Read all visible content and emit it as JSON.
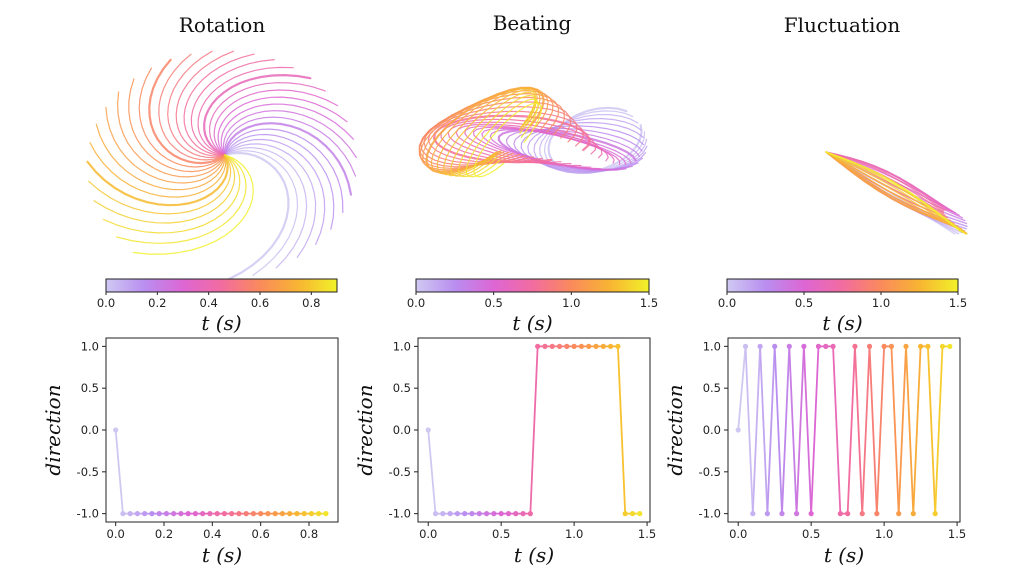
{
  "colormap": [
    "#cfc9f2",
    "#b98ef0",
    "#dd66d4",
    "#f26ca0",
    "#fa8a5c",
    "#f8b532",
    "#f1f12a"
  ],
  "panels": [
    {
      "title": "Rotation",
      "shape": "rotation",
      "colorbar": {
        "ticks": [
          "0.0",
          "0.2",
          "0.4",
          "0.6",
          "0.8"
        ],
        "max": 0.9,
        "label": "t (s)"
      },
      "chart_tmax": 0.9
    },
    {
      "title": "Beating",
      "shape": "beating",
      "colorbar": {
        "ticks": [
          "0.0",
          "0.5",
          "1.0",
          "1.5"
        ],
        "max": 1.5,
        "label": "t (s)"
      },
      "chart_tmax": 1.5
    },
    {
      "title": "Fluctuation",
      "shape": "fluctuation",
      "colorbar": {
        "ticks": [
          "0.0",
          "0.5",
          "1.0",
          "1.5"
        ],
        "max": 1.5,
        "label": "t (s)"
      },
      "chart_tmax": 1.5
    }
  ],
  "chart_data": [
    {
      "type": "line",
      "title": "Rotation",
      "xlabel": "t (s)",
      "ylabel": "direction",
      "xlim": [
        -0.04,
        0.92
      ],
      "ylim": [
        -1.1,
        1.1
      ],
      "xticks": [
        "0.0",
        "0.2",
        "0.4",
        "0.6",
        "0.8"
      ],
      "yticks": [
        "-1.0",
        "-0.5",
        "0.0",
        "0.5",
        "1.0"
      ],
      "x": [
        0.0,
        0.03,
        0.06,
        0.09,
        0.12,
        0.15,
        0.18,
        0.21,
        0.24,
        0.27,
        0.3,
        0.33,
        0.36,
        0.39,
        0.42,
        0.45,
        0.48,
        0.51,
        0.54,
        0.57,
        0.6,
        0.63,
        0.66,
        0.69,
        0.72,
        0.75,
        0.78,
        0.81,
        0.84,
        0.87
      ],
      "y": [
        0,
        -1,
        -1,
        -1,
        -1,
        -1,
        -1,
        -1,
        -1,
        -1,
        -1,
        -1,
        -1,
        -1,
        -1,
        -1,
        -1,
        -1,
        -1,
        -1,
        -1,
        -1,
        -1,
        -1,
        -1,
        -1,
        -1,
        -1,
        -1,
        -1
      ]
    },
    {
      "type": "line",
      "title": "Beating",
      "xlabel": "t (s)",
      "ylabel": "direction",
      "xlim": [
        -0.07,
        1.52
      ],
      "ylim": [
        -1.1,
        1.1
      ],
      "xticks": [
        "0.0",
        "0.5",
        "1.0",
        "1.5"
      ],
      "yticks": [
        "-1.0",
        "-0.5",
        "0.0",
        "0.5",
        "1.0"
      ],
      "x": [
        0.0,
        0.05,
        0.1,
        0.15,
        0.2,
        0.25,
        0.3,
        0.35,
        0.4,
        0.45,
        0.5,
        0.55,
        0.6,
        0.65,
        0.7,
        0.75,
        0.8,
        0.85,
        0.9,
        0.95,
        1.0,
        1.05,
        1.1,
        1.15,
        1.2,
        1.25,
        1.3,
        1.35,
        1.4,
        1.45
      ],
      "y": [
        0,
        -1,
        -1,
        -1,
        -1,
        -1,
        -1,
        -1,
        -1,
        -1,
        -1,
        -1,
        -1,
        -1,
        -1,
        1,
        1,
        1,
        1,
        1,
        1,
        1,
        1,
        1,
        1,
        1,
        1,
        -1,
        -1,
        -1
      ]
    },
    {
      "type": "line",
      "title": "Fluctuation",
      "xlabel": "t (s)",
      "ylabel": "direction",
      "xlim": [
        -0.07,
        1.52
      ],
      "ylim": [
        -1.1,
        1.1
      ],
      "xticks": [
        "0.0",
        "0.5",
        "1.0",
        "1.5"
      ],
      "yticks": [
        "-1.0",
        "-0.5",
        "0.0",
        "0.5",
        "1.0"
      ],
      "x": [
        0.0,
        0.05,
        0.1,
        0.15,
        0.2,
        0.25,
        0.3,
        0.35,
        0.4,
        0.45,
        0.5,
        0.55,
        0.6,
        0.65,
        0.7,
        0.75,
        0.8,
        0.85,
        0.9,
        0.95,
        1.0,
        1.05,
        1.1,
        1.15,
        1.2,
        1.25,
        1.3,
        1.35,
        1.4,
        1.45
      ],
      "y": [
        0,
        1,
        -1,
        1,
        -1,
        1,
        -1,
        1,
        -1,
        1,
        -1,
        1,
        1,
        1,
        -1,
        -1,
        1,
        -1,
        1,
        -1,
        1,
        1,
        -1,
        1,
        -1,
        1,
        1,
        -1,
        1,
        1
      ]
    }
  ]
}
